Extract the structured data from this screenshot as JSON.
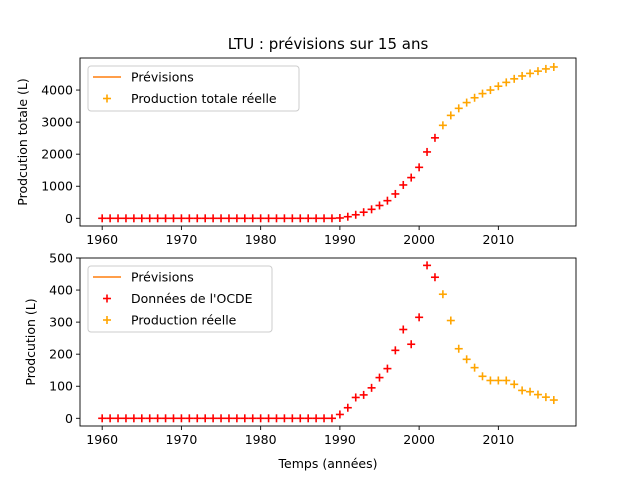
{
  "chart_data": [
    {
      "type": "scatter",
      "title": "LTU : prévisions sur 15 ans",
      "xlabel": "",
      "ylabel": "Prodcution totale (L)",
      "xlim": [
        1957.2,
        2019.8
      ],
      "ylim": [
        -240,
        5000
      ],
      "xticks": [
        1960,
        1970,
        1980,
        1990,
        2000,
        2010
      ],
      "yticks": [
        0,
        1000,
        2000,
        3000,
        4000
      ],
      "legend_position": "upper-left",
      "colors": {
        "forecast_line": "#ff7f0e",
        "red": "#ff0000",
        "orange": "#ffa500"
      },
      "legend": [
        {
          "label": "Prévisions",
          "kind": "line",
          "color": "#ff7f0e"
        },
        {
          "label": "Production totale réelle",
          "kind": "plus",
          "color": "#ffa500"
        }
      ],
      "series": [
        {
          "name": "Prévisions",
          "kind": "line",
          "color": "#ff7f0e",
          "x": [],
          "y": []
        },
        {
          "name": "",
          "kind": "plus",
          "color": "#ff0000",
          "x": [
            1960,
            1961,
            1962,
            1963,
            1964,
            1965,
            1966,
            1967,
            1968,
            1969,
            1970,
            1971,
            1972,
            1973,
            1974,
            1975,
            1976,
            1977,
            1978,
            1979,
            1980,
            1981,
            1982,
            1983,
            1984,
            1985,
            1986,
            1987,
            1988,
            1989,
            1990,
            1991,
            1992,
            1993,
            1994,
            1995,
            1996,
            1997,
            1998,
            1999,
            2000,
            2001,
            2002
          ],
          "y": [
            0,
            0,
            0,
            0,
            0,
            0,
            0,
            0,
            0,
            0,
            0,
            0,
            0,
            0,
            0,
            0,
            0,
            0,
            0,
            0,
            0,
            0,
            0,
            0,
            0,
            0,
            0,
            0,
            0,
            0,
            10,
            50,
            110,
            190,
            280,
            400,
            550,
            760,
            1040,
            1270,
            1590,
            2070,
            2510
          ]
        },
        {
          "name": "Production totale réelle",
          "kind": "plus",
          "color": "#ffa500",
          "x": [
            2003,
            2004,
            2005,
            2006,
            2007,
            2008,
            2009,
            2010,
            2011,
            2012,
            2013,
            2014,
            2015,
            2016,
            2017
          ],
          "y": [
            2900,
            3210,
            3430,
            3610,
            3760,
            3890,
            4000,
            4120,
            4240,
            4350,
            4440,
            4520,
            4590,
            4660,
            4720
          ]
        }
      ]
    },
    {
      "type": "scatter",
      "title": "",
      "xlabel": "Temps (années)",
      "ylabel": "Prodcution (L)",
      "xlim": [
        1957.2,
        2019.8
      ],
      "ylim": [
        -24,
        500
      ],
      "xticks": [
        1960,
        1970,
        1980,
        1990,
        2000,
        2010
      ],
      "yticks": [
        0,
        100,
        200,
        300,
        400,
        500
      ],
      "legend_position": "upper-left",
      "colors": {
        "forecast_line": "#ff7f0e",
        "red": "#ff0000",
        "orange": "#ffa500"
      },
      "legend": [
        {
          "label": "Prévisions",
          "kind": "line",
          "color": "#ff7f0e"
        },
        {
          "label": "Données de l'OCDE",
          "kind": "plus",
          "color": "#ff0000"
        },
        {
          "label": "Production réelle",
          "kind": "plus",
          "color": "#ffa500"
        }
      ],
      "series": [
        {
          "name": "Prévisions",
          "kind": "line",
          "color": "#ff7f0e",
          "x": [],
          "y": []
        },
        {
          "name": "Données de l'OCDE",
          "kind": "plus",
          "color": "#ff0000",
          "x": [
            1960,
            1961,
            1962,
            1963,
            1964,
            1965,
            1966,
            1967,
            1968,
            1969,
            1970,
            1971,
            1972,
            1973,
            1974,
            1975,
            1976,
            1977,
            1978,
            1979,
            1980,
            1981,
            1982,
            1983,
            1984,
            1985,
            1986,
            1987,
            1988,
            1989,
            1990,
            1991,
            1992,
            1993,
            1994,
            1995,
            1996,
            1997,
            1998,
            1999,
            2000,
            2001,
            2002
          ],
          "y": [
            0,
            0,
            0,
            0,
            0,
            0,
            0,
            0,
            0,
            0,
            0,
            0,
            0,
            0,
            0,
            0,
            0,
            0,
            0,
            0,
            0,
            0,
            0,
            0,
            0,
            0,
            0,
            0,
            0,
            0,
            12,
            33,
            65,
            73,
            95,
            127,
            155,
            212,
            277,
            231,
            315,
            477,
            440
          ]
        },
        {
          "name": "Production réelle",
          "kind": "plus",
          "color": "#ffa500",
          "x": [
            2003,
            2004,
            2005,
            2006,
            2007,
            2008,
            2009,
            2010,
            2011,
            2012,
            2013,
            2014,
            2015,
            2016,
            2017
          ],
          "y": [
            387,
            305,
            217,
            184,
            158,
            131,
            118,
            118,
            118,
            106,
            87,
            83,
            74,
            66,
            57
          ]
        }
      ]
    }
  ]
}
